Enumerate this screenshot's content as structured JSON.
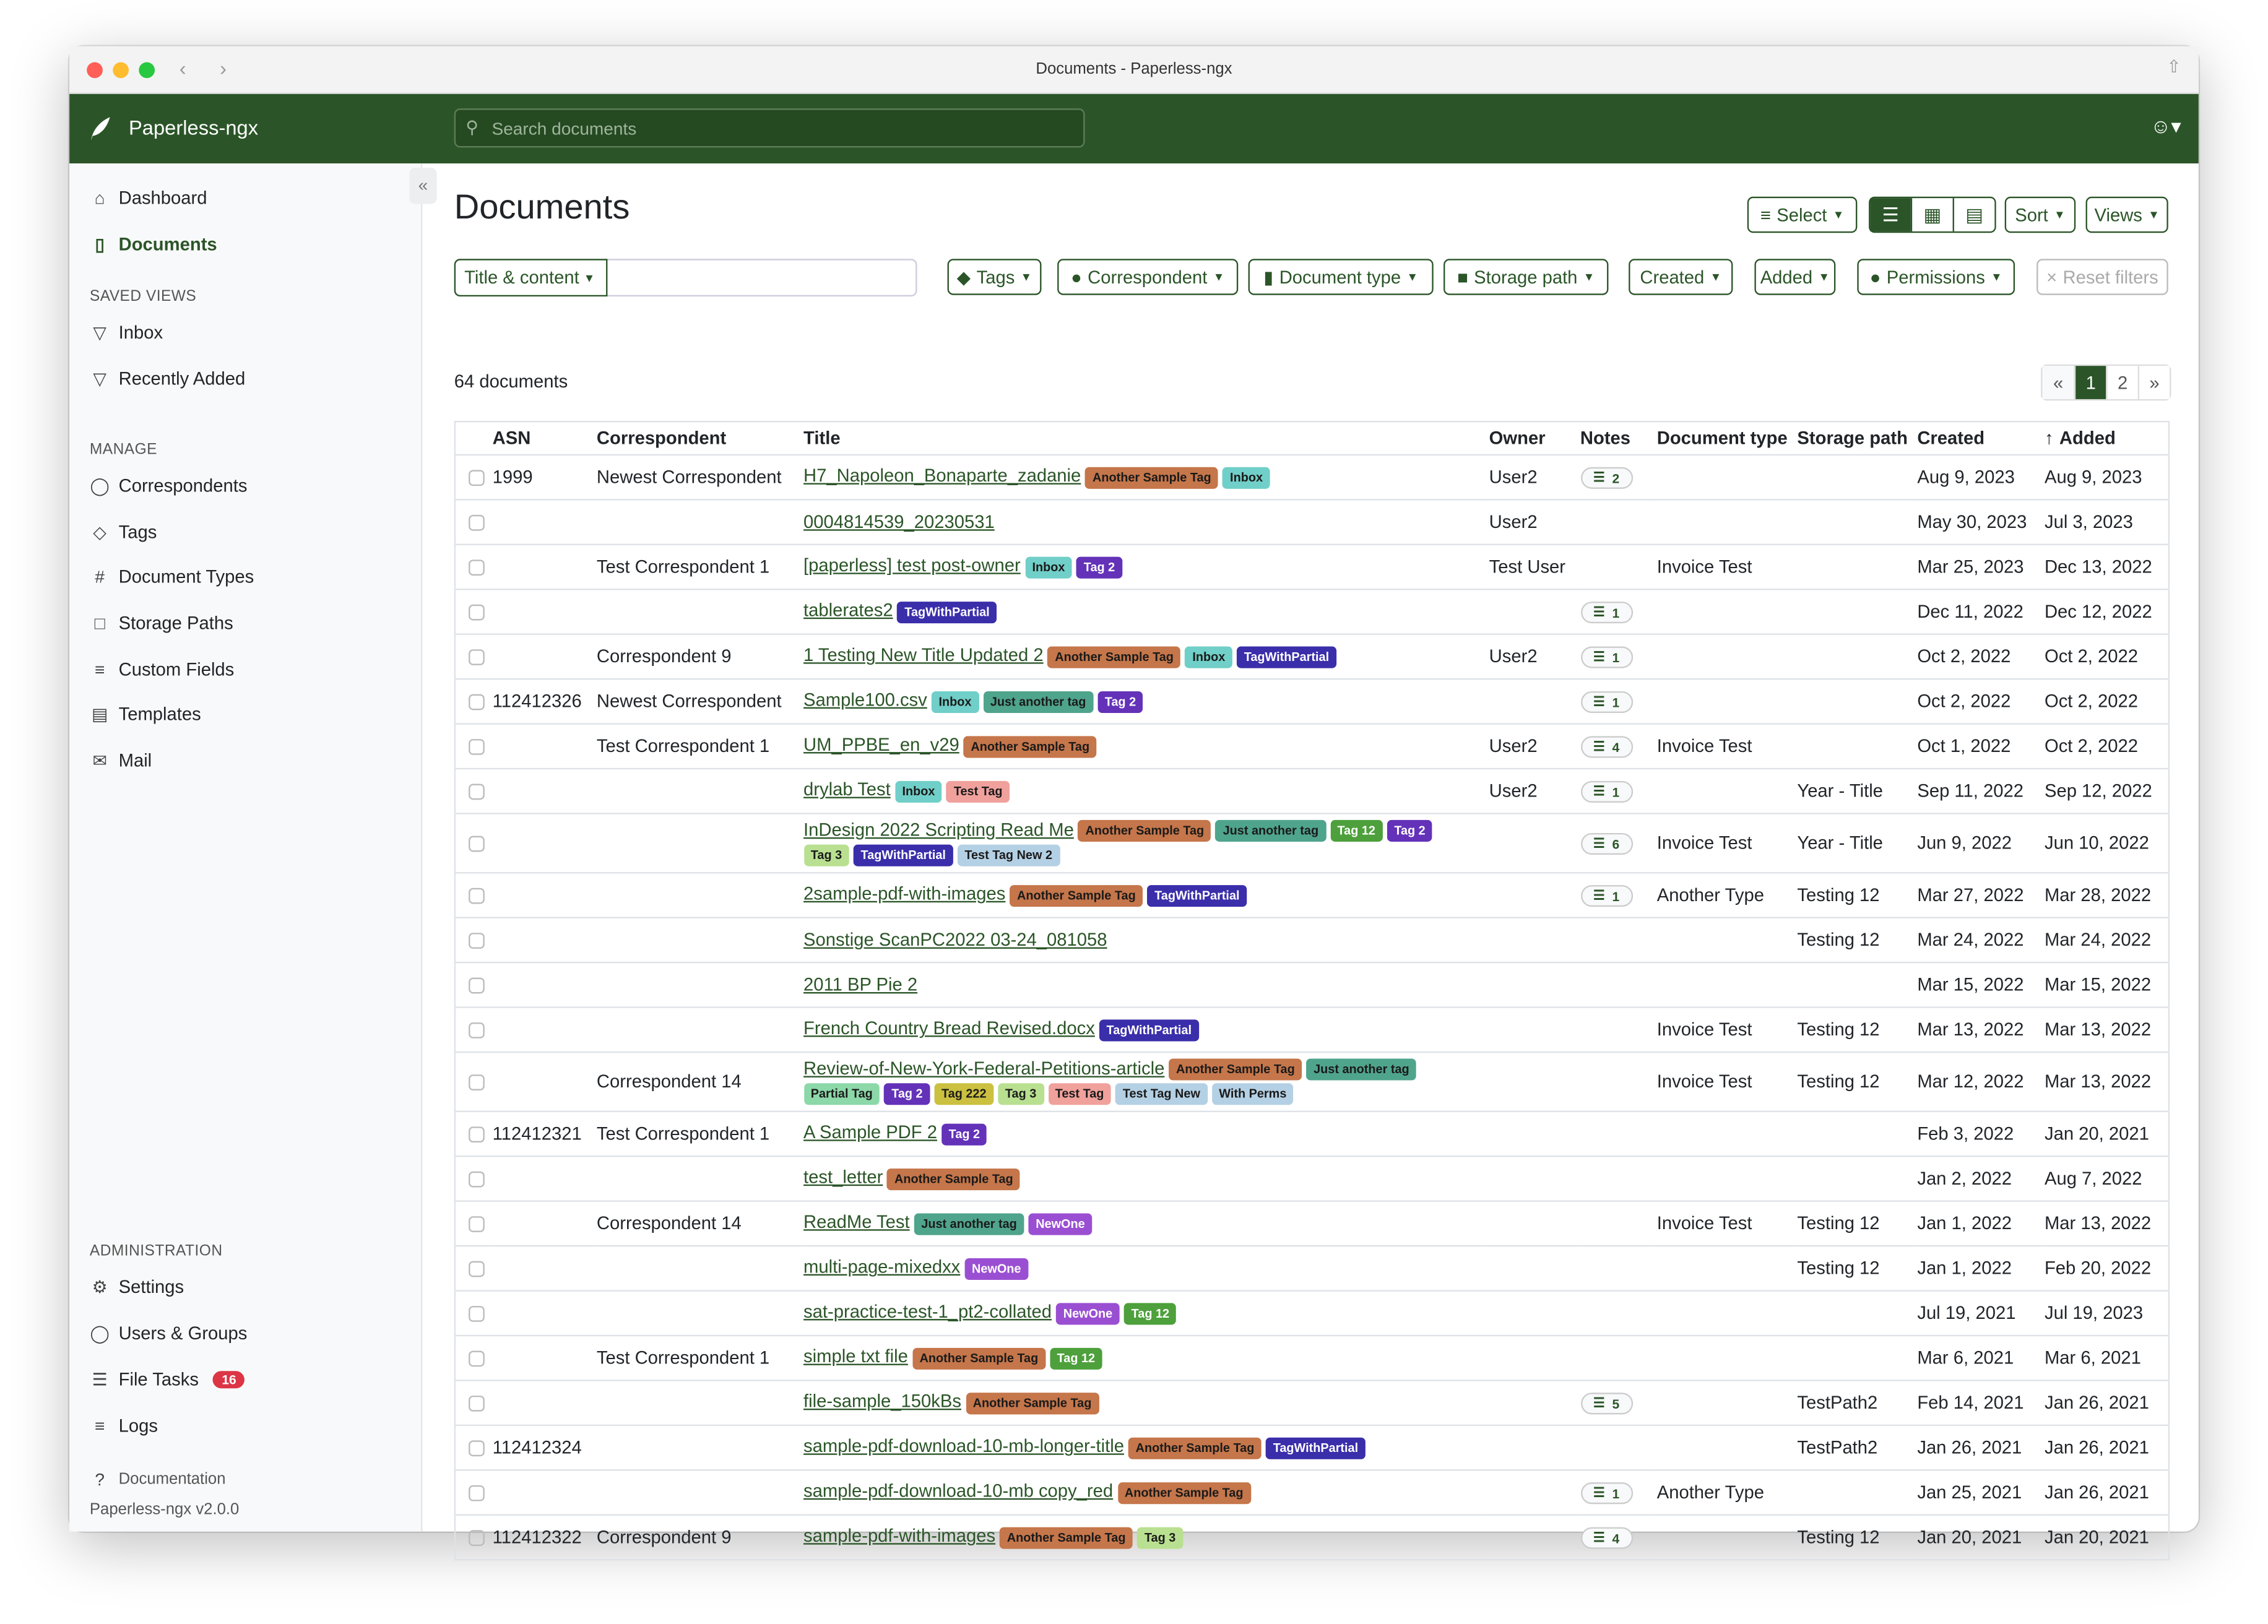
{
  "window": {
    "title": "Documents - Paperless-ngx"
  },
  "app": {
    "brand": "Paperless-ngx",
    "search_placeholder": "Search documents",
    "accent": "#2b5528"
  },
  "sidebar": {
    "items": [
      {
        "label": "Dashboard",
        "icon": "house-icon"
      },
      {
        "label": "Documents",
        "icon": "file-icon",
        "active": true
      }
    ],
    "saved_views_heading": "SAVED VIEWS",
    "saved_views": [
      {
        "label": "Inbox"
      },
      {
        "label": "Recently Added"
      }
    ],
    "manage_heading": "MANAGE",
    "manage": [
      {
        "label": "Correspondents",
        "icon": "person-icon"
      },
      {
        "label": "Tags",
        "icon": "tags-icon"
      },
      {
        "label": "Document Types",
        "icon": "hash-icon"
      },
      {
        "label": "Storage Paths",
        "icon": "folder-icon"
      },
      {
        "label": "Custom Fields",
        "icon": "ui-radios-icon"
      },
      {
        "label": "Templates",
        "icon": "file-text-icon"
      },
      {
        "label": "Mail",
        "icon": "envelope-icon"
      }
    ],
    "admin_heading": "ADMINISTRATION",
    "admin": [
      {
        "label": "Settings",
        "icon": "gear-icon"
      },
      {
        "label": "Users & Groups",
        "icon": "people-icon"
      },
      {
        "label": "File Tasks",
        "icon": "list-icon",
        "badge": "16"
      },
      {
        "label": "Logs",
        "icon": "text-lines-icon"
      }
    ],
    "documentation": "Documentation",
    "version": "Paperless-ngx v2.0.0"
  },
  "page": {
    "title": "Documents",
    "select": "Select",
    "sort": "Sort",
    "views": "Views"
  },
  "filters": {
    "title_content": "Title & content",
    "tags": "Tags",
    "correspondent": "Correspondent",
    "document_type": "Document type",
    "storage_path": "Storage path",
    "created": "Created",
    "added": "Added",
    "permissions": "Permissions",
    "reset": "Reset filters"
  },
  "documents": {
    "count": "64 documents",
    "pagination": {
      "prev": "«",
      "pages": [
        "1",
        "2"
      ],
      "current": "1",
      "next": "»"
    },
    "columns": {
      "asn": "ASN",
      "correspondent": "Correspondent",
      "title": "Title",
      "owner": "Owner",
      "notes": "Notes",
      "document_type": "Document type",
      "storage_path": "Storage path",
      "created": "Created",
      "added": "Added"
    },
    "sorted_by": "Added",
    "rows": [
      {
        "asn": "1999",
        "correspondent": "Newest Correspondent",
        "title": "H7_Napoleon_Bonaparte_zadanie",
        "tags": [
          "Another Sample Tag",
          "Inbox"
        ],
        "owner": "User2",
        "notes": "2",
        "document_type": "",
        "storage_path": "",
        "created": "Aug 9, 2023",
        "added": "Aug 9, 2023"
      },
      {
        "asn": "",
        "correspondent": "",
        "title": "0004814539_20230531",
        "tags": [],
        "owner": "User2",
        "notes": "",
        "document_type": "",
        "storage_path": "",
        "created": "May 30, 2023",
        "added": "Jul 3, 2023"
      },
      {
        "asn": "",
        "correspondent": "Test Correspondent 1",
        "title": "[paperless] test post-owner",
        "tags": [
          "Inbox",
          "Tag 2"
        ],
        "owner": "Test User",
        "notes": "",
        "document_type": "Invoice Test",
        "storage_path": "",
        "created": "Mar 25, 2023",
        "added": "Dec 13, 2022"
      },
      {
        "asn": "",
        "correspondent": "",
        "title": "tablerates2",
        "tags": [
          "TagWithPartial"
        ],
        "owner": "",
        "notes": "1",
        "document_type": "",
        "storage_path": "",
        "created": "Dec 11, 2022",
        "added": "Dec 12, 2022"
      },
      {
        "asn": "",
        "correspondent": "Correspondent 9",
        "title": "1 Testing New Title Updated 2",
        "tags": [
          "Another Sample Tag",
          "Inbox",
          "TagWithPartial"
        ],
        "owner": "User2",
        "notes": "1",
        "document_type": "",
        "storage_path": "",
        "created": "Oct 2, 2022",
        "added": "Oct 2, 2022"
      },
      {
        "asn": "112412326",
        "correspondent": "Newest Correspondent",
        "title": "Sample100.csv",
        "tags": [
          "Inbox",
          "Just another tag",
          "Tag 2"
        ],
        "owner": "",
        "notes": "1",
        "document_type": "",
        "storage_path": "",
        "created": "Oct 2, 2022",
        "added": "Oct 2, 2022"
      },
      {
        "asn": "",
        "correspondent": "Test Correspondent 1",
        "title": "UM_PPBE_en_v29",
        "tags": [
          "Another Sample Tag"
        ],
        "owner": "User2",
        "notes": "4",
        "document_type": "Invoice Test",
        "storage_path": "",
        "created": "Oct 1, 2022",
        "added": "Oct 2, 2022"
      },
      {
        "asn": "",
        "correspondent": "",
        "title": "drylab Test",
        "tags": [
          "Inbox",
          "Test Tag"
        ],
        "owner": "User2",
        "notes": "1",
        "document_type": "",
        "storage_path": "Year - Title",
        "created": "Sep 11, 2022",
        "added": "Sep 12, 2022"
      },
      {
        "asn": "",
        "correspondent": "",
        "title": "InDesign 2022 Scripting Read Me",
        "tags": [
          "Another Sample Tag",
          "Just another tag",
          "Tag 12",
          "Tag 2",
          "Tag 3",
          "TagWithPartial",
          "Test Tag New 2"
        ],
        "owner": "",
        "notes": "6",
        "document_type": "Invoice Test",
        "storage_path": "Year - Title",
        "created": "Jun 9, 2022",
        "added": "Jun 10, 2022"
      },
      {
        "asn": "",
        "correspondent": "",
        "title": "2sample-pdf-with-images",
        "tags": [
          "Another Sample Tag",
          "TagWithPartial"
        ],
        "owner": "",
        "notes": "1",
        "document_type": "Another Type",
        "storage_path": "Testing 12",
        "created": "Mar 27, 2022",
        "added": "Mar 28, 2022"
      },
      {
        "asn": "",
        "correspondent": "",
        "title": "Sonstige ScanPC2022 03-24_081058",
        "tags": [],
        "owner": "",
        "notes": "",
        "document_type": "",
        "storage_path": "Testing 12",
        "created": "Mar 24, 2022",
        "added": "Mar 24, 2022"
      },
      {
        "asn": "",
        "correspondent": "",
        "title": "2011 BP Pie 2",
        "tags": [],
        "owner": "",
        "notes": "",
        "document_type": "",
        "storage_path": "",
        "created": "Mar 15, 2022",
        "added": "Mar 15, 2022"
      },
      {
        "asn": "",
        "correspondent": "",
        "title": "French Country Bread Revised.docx",
        "tags": [
          "TagWithPartial"
        ],
        "owner": "",
        "notes": "",
        "document_type": "Invoice Test",
        "storage_path": "Testing 12",
        "created": "Mar 13, 2022",
        "added": "Mar 13, 2022"
      },
      {
        "asn": "",
        "correspondent": "Correspondent 14",
        "title": "Review-of-New-York-Federal-Petitions-article",
        "tags": [
          "Another Sample Tag",
          "Just another tag",
          "Partial Tag",
          "Tag 2",
          "Tag 222",
          "Tag 3",
          "Test Tag",
          "Test Tag New",
          "With Perms"
        ],
        "owner": "",
        "notes": "",
        "document_type": "Invoice Test",
        "storage_path": "Testing 12",
        "created": "Mar 12, 2022",
        "added": "Mar 13, 2022"
      },
      {
        "asn": "112412321",
        "correspondent": "Test Correspondent 1",
        "title": "A Sample PDF 2",
        "tags": [
          "Tag 2"
        ],
        "owner": "",
        "notes": "",
        "document_type": "",
        "storage_path": "",
        "created": "Feb 3, 2022",
        "added": "Jan 20, 2021"
      },
      {
        "asn": "",
        "correspondent": "",
        "title": "test_letter",
        "tags": [
          "Another Sample Tag"
        ],
        "owner": "",
        "notes": "",
        "document_type": "",
        "storage_path": "",
        "created": "Jan 2, 2022",
        "added": "Aug 7, 2022"
      },
      {
        "asn": "",
        "correspondent": "Correspondent 14",
        "title": "ReadMe Test",
        "tags": [
          "Just another tag",
          "NewOne"
        ],
        "owner": "",
        "notes": "",
        "document_type": "Invoice Test",
        "storage_path": "Testing 12",
        "created": "Jan 1, 2022",
        "added": "Mar 13, 2022"
      },
      {
        "asn": "",
        "correspondent": "",
        "title": "multi-page-mixedxx",
        "tags": [
          "NewOne"
        ],
        "owner": "",
        "notes": "",
        "document_type": "",
        "storage_path": "Testing 12",
        "created": "Jan 1, 2022",
        "added": "Feb 20, 2022"
      },
      {
        "asn": "",
        "correspondent": "",
        "title": "sat-practice-test-1_pt2-collated",
        "tags": [
          "NewOne",
          "Tag 12"
        ],
        "owner": "",
        "notes": "",
        "document_type": "",
        "storage_path": "",
        "created": "Jul 19, 2021",
        "added": "Jul 19, 2023"
      },
      {
        "asn": "",
        "correspondent": "Test Correspondent 1",
        "title": "simple txt file",
        "tags": [
          "Another Sample Tag",
          "Tag 12"
        ],
        "owner": "",
        "notes": "",
        "document_type": "",
        "storage_path": "",
        "created": "Mar 6, 2021",
        "added": "Mar 6, 2021"
      },
      {
        "asn": "",
        "correspondent": "",
        "title": "file-sample_150kBs",
        "tags": [
          "Another Sample Tag"
        ],
        "owner": "",
        "notes": "5",
        "document_type": "",
        "storage_path": "TestPath2",
        "created": "Feb 14, 2021",
        "added": "Jan 26, 2021"
      },
      {
        "asn": "112412324",
        "correspondent": "",
        "title": "sample-pdf-download-10-mb-longer-title",
        "tags": [
          "Another Sample Tag",
          "TagWithPartial"
        ],
        "owner": "",
        "notes": "",
        "document_type": "",
        "storage_path": "TestPath2",
        "created": "Jan 26, 2021",
        "added": "Jan 26, 2021"
      },
      {
        "asn": "",
        "correspondent": "",
        "title": "sample-pdf-download-10-mb copy_red",
        "tags": [
          "Another Sample Tag"
        ],
        "owner": "",
        "notes": "1",
        "document_type": "Another Type",
        "storage_path": "",
        "created": "Jan 25, 2021",
        "added": "Jan 26, 2021"
      },
      {
        "asn": "112412322",
        "correspondent": "Correspondent 9",
        "title": "sample-pdf-with-images",
        "tags": [
          "Another Sample Tag",
          "Tag 3"
        ],
        "owner": "",
        "notes": "4",
        "document_type": "",
        "storage_path": "Testing 12",
        "created": "Jan 20, 2021",
        "added": "Jan 20, 2021"
      }
    ]
  },
  "tag_colors": {
    "Another Sample Tag": {
      "bg": "#c5764a",
      "fg": "#1a1a1a"
    },
    "Inbox": {
      "bg": "#70cfc8",
      "fg": "#1a1a1a"
    },
    "Tag 2": {
      "bg": "#6332b8",
      "fg": "#ffffff"
    },
    "TagWithPartial": {
      "bg": "#3a2eaa",
      "fg": "#ffffff"
    },
    "Just another tag": {
      "bg": "#4fa48c",
      "fg": "#1a1a1a"
    },
    "Test Tag": {
      "bg": "#f0a19c",
      "fg": "#1a1a1a"
    },
    "Tag 12": {
      "bg": "#4da03b",
      "fg": "#ffffff"
    },
    "Tag 3": {
      "bg": "#b9e090",
      "fg": "#1a1a1a"
    },
    "Test Tag New 2": {
      "bg": "#b4d0e4",
      "fg": "#1a1a1a"
    },
    "Test Tag New": {
      "bg": "#b4d0e4",
      "fg": "#1a1a1a"
    },
    "With Perms": {
      "bg": "#b4d0e4",
      "fg": "#1a1a1a"
    },
    "Partial Tag": {
      "bg": "#8cd8a8",
      "fg": "#1a1a1a"
    },
    "Tag 222": {
      "bg": "#cbc040",
      "fg": "#1a1a1a"
    },
    "NewOne": {
      "bg": "#9a4fd2",
      "fg": "#ffffff"
    }
  }
}
